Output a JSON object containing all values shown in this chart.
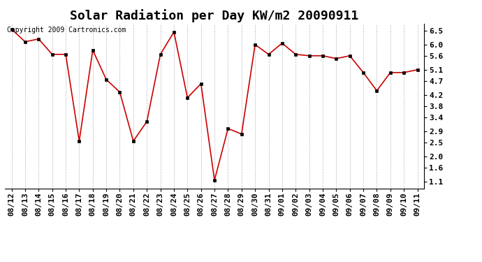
{
  "title": "Solar Radiation per Day KW/m2 20090911",
  "copyright_text": "Copyright 2009 Cartronics.com",
  "labels": [
    "08/12",
    "08/13",
    "08/14",
    "08/15",
    "08/16",
    "08/17",
    "08/18",
    "08/19",
    "08/20",
    "08/21",
    "08/22",
    "08/23",
    "08/24",
    "08/25",
    "08/26",
    "08/27",
    "08/28",
    "08/29",
    "08/30",
    "08/31",
    "09/01",
    "09/02",
    "09/03",
    "09/04",
    "09/05",
    "09/06",
    "09/07",
    "09/08",
    "09/09",
    "09/10",
    "09/11"
  ],
  "values": [
    6.55,
    6.1,
    6.2,
    5.65,
    5.65,
    2.55,
    5.8,
    4.75,
    4.3,
    2.55,
    3.25,
    5.65,
    6.45,
    4.1,
    4.6,
    1.15,
    3.0,
    2.8,
    6.0,
    5.65,
    6.05,
    5.65,
    5.6,
    5.6,
    5.5,
    5.6,
    5.0,
    4.35,
    5.0,
    5.0,
    5.1
  ],
  "line_color": "#cc0000",
  "marker_color": "#000000",
  "bg_color": "#ffffff",
  "grid_color": "#bbbbbb",
  "yticks": [
    1.1,
    1.6,
    2.0,
    2.5,
    2.9,
    3.4,
    3.8,
    4.2,
    4.7,
    5.1,
    5.6,
    6.0,
    6.5
  ],
  "ylim": [
    0.85,
    6.75
  ],
  "title_fontsize": 13,
  "tick_fontsize": 8,
  "copyright_fontsize": 7
}
